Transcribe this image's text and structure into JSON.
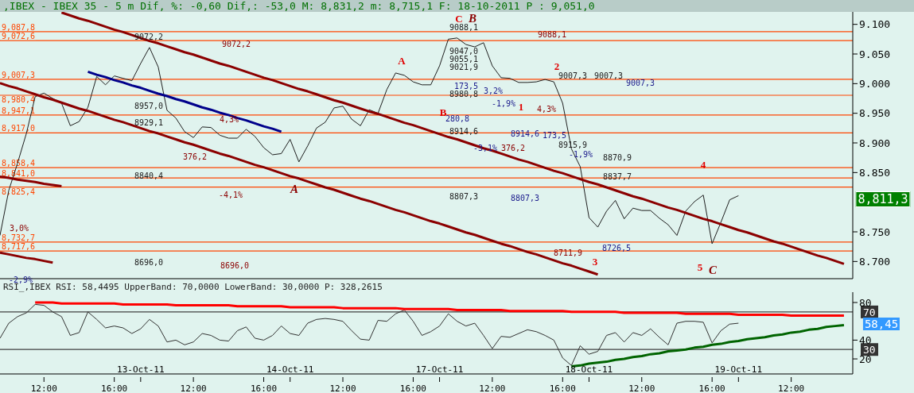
{
  "chart_data": [
    {
      "type": "line",
      "title": ",IBEX - IBEX 35 -  5 m Dif, %: -0,60 Dif,: -53,0 M: 8,831,2 m: 8,715,1 F: 18-10-2011 P : 9,051,0",
      "series": [
        {
          "color": "#1f1f1f",
          "values": [
            8744,
            8820,
            8866,
            8916,
            8978,
            8984,
            8975,
            8967,
            8929,
            8936,
            8960,
            9012,
            8998,
            9013,
            9009,
            9005,
            9034,
            9061,
            9028,
            8955,
            8942,
            8919,
            8909,
            8927,
            8926,
            8913,
            8908,
            8908,
            8923,
            8911,
            8892,
            8880,
            8882,
            8906,
            8868,
            8895,
            8925,
            8935,
            8959,
            8962,
            8940,
            8929,
            8956,
            8950,
            8990,
            9018,
            9014,
            9003,
            8998,
            8998,
            9030,
            9075,
            9077,
            9066,
            9062,
            9069,
            9030,
            9010,
            9009,
            9002,
            9002,
            9003,
            9007,
            9003,
            8967,
            8890,
            8860,
            8774,
            8758,
            8785,
            8803,
            8772,
            8790,
            8786,
            8786,
            8773,
            8762,
            8744,
            8785,
            8801,
            8812,
            8730,
            8766,
            8804,
            8811,
            null,
            null,
            null,
            null,
            null,
            null,
            null,
            null,
            null,
            null,
            null,
            null,
            null
          ]
        },
        {
          "type": "line",
          "color": "#8b0000",
          "values": [
            null,
            null,
            null,
            null,
            null,
            null,
            null,
            9120,
            9115,
            9110,
            9106,
            9101,
            9096,
            9091,
            9087,
            9082,
            9077,
            9072,
            9068,
            9063,
            9058,
            9053,
            9049,
            9044,
            9039,
            9034,
            9030,
            9025,
            9020,
            9015,
            9010,
            9006,
            9001,
            8996,
            8991,
            8987,
            8982,
            8977,
            8972,
            8968,
            8963,
            8958,
            8953,
            8949,
            8944,
            8939,
            8934,
            8930,
            8925,
            8920,
            8915,
            8910,
            8906,
            8901,
            8896,
            8891,
            8887,
            8882,
            8877,
            8872,
            8868,
            8863,
            8858,
            8853,
            8849,
            8844,
            8839,
            8834,
            8830,
            8825,
            8820,
            8815,
            8810,
            8806,
            8801,
            8796,
            8791,
            8787,
            8782,
            8777,
            8772,
            8768,
            8763,
            8758,
            8753,
            8749,
            8744,
            8739,
            8734,
            8730,
            8725,
            8720,
            8715,
            8710,
            8706,
            8701,
            8696,
            null
          ]
        },
        {
          "type": "line",
          "color": "#8b0000",
          "values": [
            9001,
            8996,
            8992,
            8987,
            8982,
            8977,
            8973,
            8968,
            8963,
            8958,
            8954,
            8949,
            8944,
            8939,
            8935,
            8930,
            8925,
            8920,
            8916,
            8911,
            8906,
            8901,
            8897,
            8892,
            8887,
            8882,
            8878,
            8873,
            8868,
            8863,
            8859,
            8854,
            8849,
            8844,
            8840,
            8835,
            8830,
            8825,
            8821,
            8816,
            8811,
            8806,
            8802,
            8797,
            8792,
            8787,
            8783,
            8778,
            8773,
            8768,
            8764,
            8759,
            8754,
            8749,
            8745,
            8740,
            8735,
            8730,
            8726,
            8721,
            8716,
            8712,
            8707,
            8702,
            8697,
            8693,
            8688,
            8683,
            8678,
            null,
            null,
            null,
            null,
            null,
            null,
            null,
            null,
            null,
            null,
            null,
            null,
            null,
            null,
            null,
            null,
            null,
            null,
            null,
            null,
            null,
            null,
            null,
            null,
            null,
            null,
            null,
            null,
            null
          ]
        },
        {
          "type": "line",
          "color": "#8b0000",
          "values": [
            8843,
            8841,
            8838,
            8836,
            8834,
            8831,
            8829,
            8827,
            null,
            null,
            null,
            null,
            null,
            null,
            null,
            null,
            null,
            null,
            null,
            null,
            null,
            null,
            null,
            null,
            null,
            null,
            null,
            null,
            null,
            null,
            null,
            null,
            null,
            null,
            null,
            null,
            null,
            null,
            null,
            null,
            null,
            null,
            null,
            null,
            null,
            null,
            null,
            null,
            null,
            null,
            null,
            null,
            null,
            null,
            null,
            null,
            null,
            null,
            null,
            null,
            null,
            null,
            null,
            null,
            null,
            null,
            null,
            null,
            null,
            null,
            null,
            null,
            null,
            null,
            null,
            null,
            null,
            null,
            null,
            null,
            null,
            null,
            null,
            null,
            null,
            null,
            null,
            null,
            null,
            null,
            null,
            null,
            null,
            null,
            null,
            null,
            null,
            null
          ]
        },
        {
          "type": "line",
          "color": "#8b0000",
          "values": [
            8715,
            8712,
            8709,
            8706,
            8704,
            8701,
            8698,
            null,
            null,
            null,
            null,
            null,
            null,
            null,
            null,
            null,
            null,
            null,
            null,
            null,
            null,
            null,
            null,
            null,
            null,
            null,
            null,
            null,
            null,
            null,
            null,
            null,
            null,
            null,
            null,
            null,
            null,
            null,
            null,
            null,
            null,
            null,
            null,
            null,
            null,
            null,
            null,
            null,
            null,
            null,
            null,
            null,
            null,
            null,
            null,
            null,
            null,
            null,
            null,
            null,
            null,
            null,
            null,
            null,
            null,
            null,
            null,
            null,
            null,
            null,
            null,
            null,
            null,
            null,
            null,
            null,
            null,
            null,
            null,
            null,
            null,
            null,
            null,
            null,
            null,
            null,
            null,
            null,
            null,
            null,
            null,
            null,
            null,
            null,
            null,
            null,
            null,
            null
          ]
        },
        {
          "type": "line",
          "color": "#00008b",
          "values": [
            null,
            null,
            null,
            null,
            null,
            null,
            null,
            null,
            null,
            null,
            9020,
            9015,
            9011,
            9006,
            9002,
            8997,
            8993,
            8988,
            8983,
            8979,
            8974,
            8970,
            8965,
            8960,
            8956,
            8951,
            8947,
            8942,
            8938,
            8933,
            8928,
            8924,
            8919,
            null,
            null,
            null,
            null,
            null,
            null,
            null,
            null,
            null,
            null,
            null,
            null,
            null,
            null,
            null,
            null,
            null,
            null,
            null,
            null,
            null,
            null,
            null,
            null,
            null,
            null,
            null,
            null,
            null,
            null,
            null,
            null,
            null,
            null,
            null,
            null,
            null,
            null,
            null,
            null,
            null,
            null,
            null,
            null,
            null,
            null,
            null,
            null,
            null,
            null,
            null,
            null,
            null,
            null,
            null,
            null,
            null,
            null,
            null,
            null,
            null,
            null,
            null,
            null,
            null
          ]
        }
      ],
      "ylim": [
        8671,
        9121
      ],
      "yticks": [
        {
          "value": 8700,
          "label": "8.700"
        },
        {
          "value": 8750,
          "label": "8.750"
        },
        {
          "value": 8850,
          "label": "8.850"
        },
        {
          "value": 8900,
          "label": "8.900"
        },
        {
          "value": 8950,
          "label": "8.950"
        },
        {
          "value": 9000,
          "label": "9.000"
        },
        {
          "value": 9050,
          "label": "9.050"
        },
        {
          "value": 9100,
          "label": "9.100"
        }
      ],
      "tick_labels": "y",
      "ref_lines": [
        {
          "axis": "y",
          "value": 9087.8,
          "label": "9,087,8",
          "color": "#ff4500"
        },
        {
          "axis": "y",
          "value": 9072.6,
          "label": "9,072,6",
          "color": "#ff4500"
        },
        {
          "axis": "y",
          "value": 9007.3,
          "label": "9,007,3",
          "color": "#ff4500"
        },
        {
          "axis": "y",
          "value": 8980.4,
          "label": "8,980,4",
          "color": "#ff4500"
        },
        {
          "axis": "y",
          "value": 8947.1,
          "label": "8,947,1",
          "color": "#ff4500"
        },
        {
          "axis": "y",
          "value": 8917.0,
          "label": "8,917,0",
          "color": "#ff4500"
        },
        {
          "axis": "y",
          "value": 8858.4,
          "label": "8,858,4",
          "color": "#ff4500"
        },
        {
          "axis": "y",
          "value": 8841.0,
          "label": "8,841,0",
          "color": "#ff4500"
        },
        {
          "axis": "y",
          "value": 8825.4,
          "label": "8,825,4",
          "color": "#ff4500"
        },
        {
          "axis": "y",
          "value": 8732.7,
          "label": "8,732,7",
          "color": "#ff4500"
        },
        {
          "axis": "y",
          "value": 8717.6,
          "label": "8,717,6",
          "color": "#ff4500"
        }
      ],
      "annotations": [
        "9072,2",
        "8957,0",
        "8929,1",
        "8840,4",
        "376,2",
        "4,3%",
        "-4,1%",
        "9072,2",
        "8696,0",
        "8696,0",
        "3,0%",
        "-2,9%",
        "A",
        "A",
        "B",
        "C",
        "B",
        "9088,1",
        "9047,0",
        "9055,1",
        "9021,9",
        "173,5",
        "8980,8",
        "3,2%",
        "-1,9%",
        "1",
        "280,8",
        "8914,6",
        "8914,6",
        "173,5",
        "-3,1%",
        "376,2",
        "8807,3",
        "8807,3",
        "8711,9",
        "9088,1",
        "2",
        "4,3%",
        "9007,3",
        "9007,3",
        "9007,3",
        "8915,9",
        "-1,9%",
        "8870,9",
        "8837,7",
        "8726,5",
        "3",
        "4",
        "5",
        "C",
        "8,811,3"
      ]
    },
    {
      "type": "line",
      "title": "RSI_,IBEX RSI: 58,4495 UpperBand: 70,0000 LowerBand: 30,0000 P: 328,2615",
      "categories": [
        null,
        null,
        null,
        null,
        null,
        "12:00",
        null,
        null,
        null,
        null,
        null,
        null,
        null,
        "16:00",
        null,
        null,
        "13-Oct-11",
        null,
        null,
        null,
        null,
        null,
        "12:00",
        null,
        null,
        null,
        null,
        null,
        null,
        null,
        "16:00",
        null,
        null,
        "14-Oct-11",
        null,
        null,
        null,
        null,
        null,
        "12:00",
        null,
        null,
        null,
        null,
        null,
        null,
        null,
        "16:00",
        null,
        null,
        "17-Oct-11",
        null,
        null,
        null,
        null,
        null,
        "12:00",
        null,
        null,
        null,
        null,
        null,
        null,
        null,
        "16:00",
        null,
        null,
        "18-Oct-11",
        null,
        null,
        null,
        null,
        null,
        "12:00",
        null,
        null,
        null,
        null,
        null,
        null,
        null,
        "16:00",
        null,
        null,
        "19-Oct-11",
        null,
        null,
        null,
        null,
        null,
        "12:00",
        null,
        null,
        null,
        null,
        null,
        null,
        null
      ],
      "series": [
        {
          "color": "#333333",
          "values": [
            42,
            58,
            65,
            69,
            78,
            77,
            70,
            65,
            45,
            48,
            70,
            62,
            53,
            55,
            53,
            47,
            52,
            62,
            55,
            38,
            40,
            35,
            38,
            47,
            45,
            40,
            39,
            50,
            54,
            42,
            40,
            45,
            55,
            47,
            45,
            58,
            62,
            63,
            62,
            60,
            50,
            41,
            40,
            61,
            60,
            68,
            72,
            60,
            45,
            49,
            55,
            68,
            60,
            55,
            58,
            45,
            31,
            44,
            43,
            47,
            51,
            49,
            45,
            40,
            21,
            13,
            34,
            25,
            28,
            45,
            48,
            38,
            48,
            45,
            52,
            43,
            35,
            58,
            60,
            60,
            59,
            37,
            50,
            57,
            58,
            null,
            null,
            null,
            null,
            null,
            null,
            null,
            null,
            null,
            null,
            null,
            null,
            null
          ]
        },
        {
          "type": "line",
          "color": "#ff0000",
          "values": [
            null,
            null,
            null,
            null,
            80,
            80,
            80,
            79,
            79,
            79,
            79,
            79,
            79,
            79,
            78,
            78,
            78,
            78,
            78,
            78,
            77,
            77,
            77,
            77,
            77,
            77,
            77,
            76,
            76,
            76,
            76,
            76,
            76,
            75,
            75,
            75,
            75,
            75,
            75,
            74,
            74,
            74,
            74,
            74,
            74,
            74,
            73,
            73,
            73,
            73,
            73,
            73,
            72,
            72,
            72,
            72,
            72,
            72,
            71,
            71,
            71,
            71,
            71,
            71,
            71,
            70,
            70,
            70,
            70,
            70,
            70,
            69,
            69,
            69,
            69,
            69,
            69,
            69,
            68,
            68,
            68,
            68,
            68,
            68,
            67,
            67,
            67,
            67,
            67,
            67,
            66,
            66,
            66,
            66,
            66,
            66,
            66,
            null
          ]
        },
        {
          "type": "line",
          "color": "#006400",
          "values": [
            null,
            null,
            null,
            null,
            null,
            null,
            null,
            null,
            null,
            null,
            null,
            null,
            null,
            null,
            null,
            null,
            null,
            null,
            null,
            null,
            null,
            null,
            null,
            null,
            null,
            null,
            null,
            null,
            null,
            null,
            null,
            null,
            null,
            null,
            null,
            null,
            null,
            null,
            null,
            null,
            null,
            null,
            null,
            null,
            null,
            null,
            null,
            null,
            null,
            null,
            null,
            null,
            null,
            null,
            null,
            null,
            null,
            null,
            null,
            null,
            null,
            null,
            null,
            null,
            null,
            12,
            13,
            15,
            16,
            17,
            19,
            20,
            22,
            23,
            25,
            26,
            28,
            29,
            30,
            32,
            33,
            35,
            36,
            38,
            39,
            41,
            42,
            43,
            45,
            46,
            48,
            49,
            51,
            52,
            54,
            55,
            56,
            null
          ]
        }
      ],
      "ylim": [
        4,
        91
      ],
      "yticks": [
        20,
        40,
        80
      ],
      "ref_lines": [
        {
          "axis": "y",
          "value": 70,
          "label": "70",
          "color": "#404040"
        },
        {
          "axis": "y",
          "value": 30,
          "label": "30",
          "color": "#404040"
        }
      ],
      "annotations": [
        "58,45"
      ]
    }
  ]
}
